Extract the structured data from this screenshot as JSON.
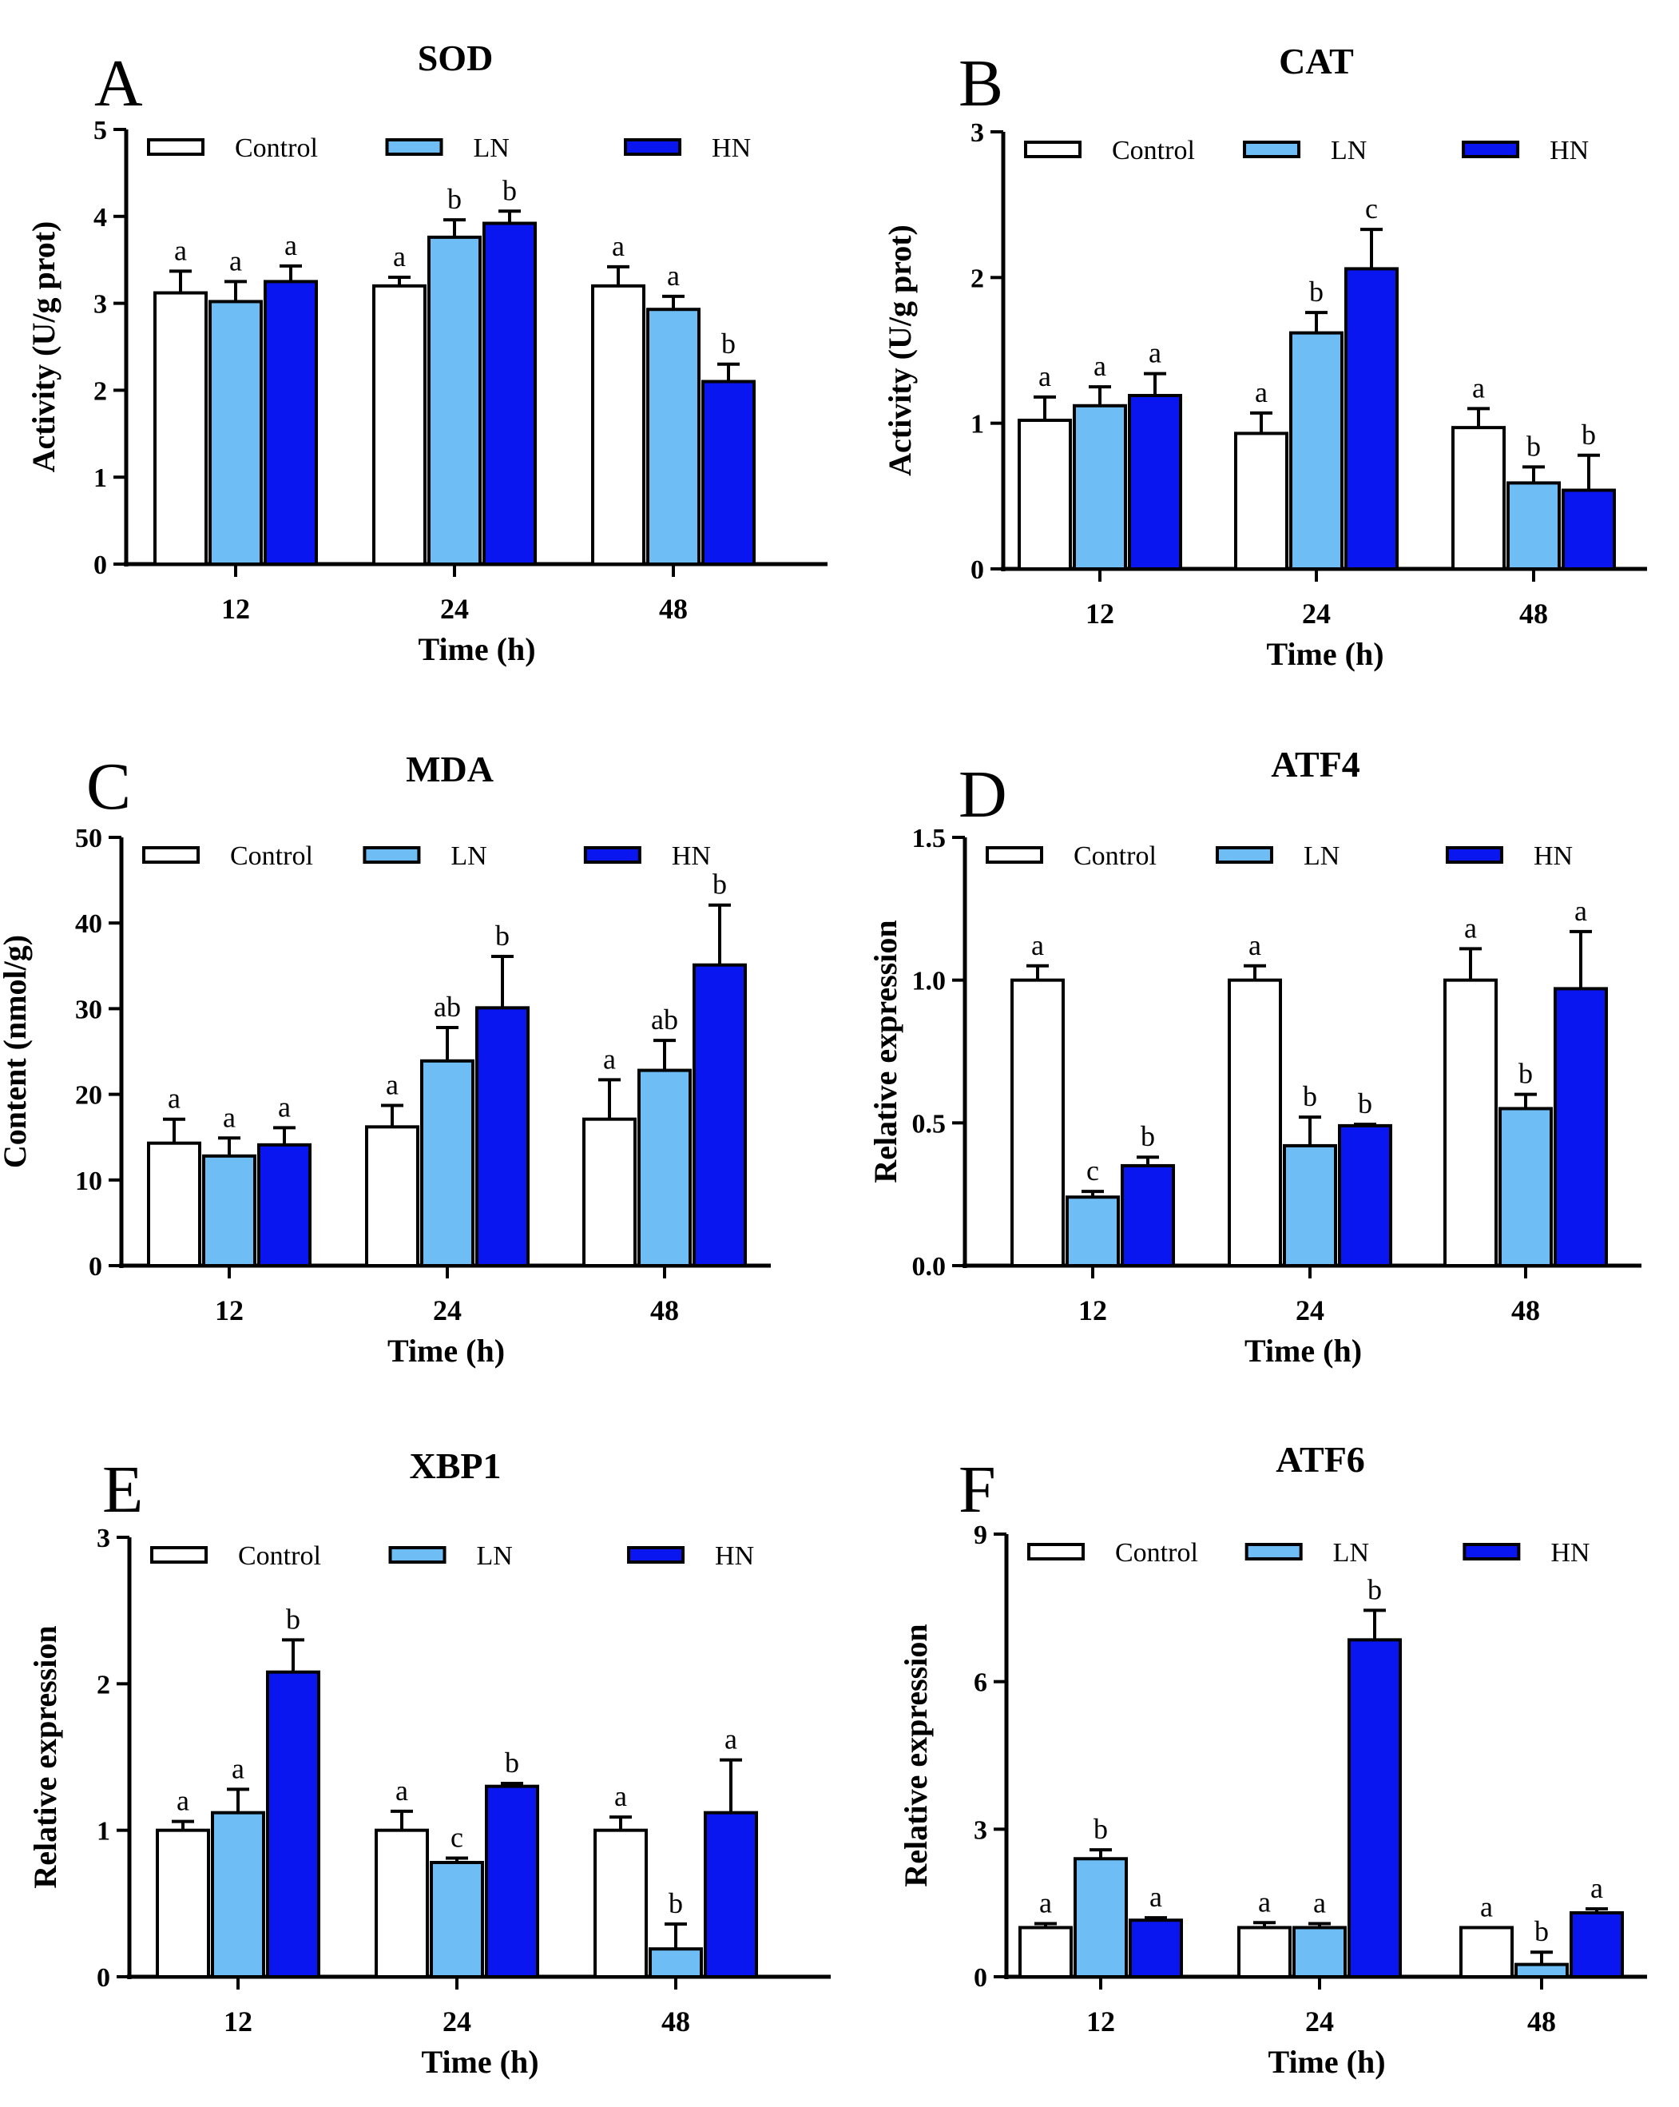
{
  "colors": {
    "Control": "#ffffff",
    "LN": "#6ebdf5",
    "HN": "#0a16f0",
    "stroke": "#000000"
  },
  "chart_data": [
    {
      "panel": "A",
      "type": "bar",
      "title": "SOD",
      "xlabel": "Time (h)",
      "ylabel": "Activity (U/g prot)",
      "ylim": [
        0,
        5
      ],
      "yticks": [
        "0",
        "1",
        "2",
        "3",
        "4",
        "5"
      ],
      "categories": [
        "12",
        "24",
        "48"
      ],
      "legend": [
        "Control",
        "LN",
        "HN"
      ],
      "legend_position": "top",
      "series": [
        {
          "name": "Control",
          "values": [
            3.12,
            3.2,
            3.2
          ],
          "errors": [
            0.25,
            0.1,
            0.22
          ],
          "labels": [
            "a",
            "a",
            "a"
          ]
        },
        {
          "name": "LN",
          "values": [
            3.02,
            3.76,
            2.93
          ],
          "errors": [
            0.23,
            0.2,
            0.15
          ],
          "labels": [
            "a",
            "b",
            "a"
          ]
        },
        {
          "name": "HN",
          "values": [
            3.25,
            3.92,
            2.1
          ],
          "errors": [
            0.18,
            0.14,
            0.2
          ],
          "labels": [
            "a",
            "b",
            "b"
          ]
        }
      ]
    },
    {
      "panel": "B",
      "type": "bar",
      "title": "CAT",
      "xlabel": "Time (h)",
      "ylabel": "Activity (U/g prot)",
      "ylim": [
        0,
        3
      ],
      "yticks": [
        "0",
        "1",
        "2",
        "3"
      ],
      "categories": [
        "12",
        "24",
        "48"
      ],
      "legend": [
        "Control",
        "LN",
        "HN"
      ],
      "legend_position": "top",
      "series": [
        {
          "name": "Control",
          "values": [
            1.02,
            0.93,
            0.97
          ],
          "errors": [
            0.16,
            0.14,
            0.13
          ],
          "labels": [
            "a",
            "a",
            "a"
          ]
        },
        {
          "name": "LN",
          "values": [
            1.12,
            1.62,
            0.59
          ],
          "errors": [
            0.13,
            0.14,
            0.11
          ],
          "labels": [
            "a",
            "b",
            "b"
          ]
        },
        {
          "name": "HN",
          "values": [
            1.19,
            2.06,
            0.54
          ],
          "errors": [
            0.15,
            0.27,
            0.24
          ],
          "labels": [
            "a",
            "c",
            "b"
          ]
        }
      ]
    },
    {
      "panel": "C",
      "type": "bar",
      "title": "MDA",
      "xlabel": "Time (h)",
      "ylabel": "Content (nmol/g)",
      "ylim": [
        0,
        50
      ],
      "yticks": [
        "0",
        "10",
        "20",
        "30",
        "40",
        "50"
      ],
      "categories": [
        "12",
        "24",
        "48"
      ],
      "legend": [
        "Control",
        "LN",
        "HN"
      ],
      "legend_position": "top",
      "series": [
        {
          "name": "Control",
          "values": [
            14.3,
            16.2,
            17.1
          ],
          "errors": [
            2.8,
            2.5,
            4.6
          ],
          "labels": [
            "a",
            "a",
            "a"
          ]
        },
        {
          "name": "LN",
          "values": [
            12.8,
            23.9,
            22.8
          ],
          "errors": [
            2.1,
            3.9,
            3.5
          ],
          "labels": [
            "a",
            "ab",
            "ab"
          ]
        },
        {
          "name": "HN",
          "values": [
            14.1,
            30.1,
            35.1
          ],
          "errors": [
            2.0,
            6.0,
            7.0
          ],
          "labels": [
            "a",
            "b",
            "b"
          ]
        }
      ]
    },
    {
      "panel": "D",
      "type": "bar",
      "title": "ATF4",
      "xlabel": "Time (h)",
      "ylabel": "Relative expression",
      "ylim": [
        0,
        1.5
      ],
      "yticks": [
        "0.0",
        "0.5",
        "1.0",
        "1.5"
      ],
      "categories": [
        "12",
        "24",
        "48"
      ],
      "legend": [
        "Control",
        "LN",
        "HN"
      ],
      "legend_position": "top",
      "series": [
        {
          "name": "Control",
          "values": [
            1.0,
            1.0,
            1.0
          ],
          "errors": [
            0.05,
            0.05,
            0.11
          ],
          "labels": [
            "a",
            "a",
            "a"
          ]
        },
        {
          "name": "LN",
          "values": [
            0.24,
            0.42,
            0.55
          ],
          "errors": [
            0.02,
            0.1,
            0.05
          ],
          "labels": [
            "c",
            "b",
            "b"
          ]
        },
        {
          "name": "HN",
          "values": [
            0.35,
            0.49,
            0.97
          ],
          "errors": [
            0.03,
            0.005,
            0.2
          ],
          "labels": [
            "b",
            "b",
            "a"
          ]
        }
      ]
    },
    {
      "panel": "E",
      "type": "bar",
      "title": "XBP1",
      "xlabel": "Time (h)",
      "ylabel": "Relative expression",
      "ylim": [
        0,
        3
      ],
      "yticks": [
        "0",
        "1",
        "2",
        "3"
      ],
      "categories": [
        "12",
        "24",
        "48"
      ],
      "legend": [
        "Control",
        "LN",
        "HN"
      ],
      "legend_position": "top",
      "series": [
        {
          "name": "Control",
          "values": [
            1.0,
            1.0,
            1.0
          ],
          "errors": [
            0.06,
            0.13,
            0.09
          ],
          "labels": [
            "a",
            "a",
            "a"
          ]
        },
        {
          "name": "LN",
          "values": [
            1.12,
            0.78,
            0.19
          ],
          "errors": [
            0.16,
            0.03,
            0.17
          ],
          "labels": [
            "a",
            "c",
            "b"
          ]
        },
        {
          "name": "HN",
          "values": [
            2.08,
            1.3,
            1.12
          ],
          "errors": [
            0.22,
            0.02,
            0.36
          ],
          "labels": [
            "b",
            "b",
            "a"
          ]
        }
      ]
    },
    {
      "panel": "F",
      "type": "bar",
      "title": "ATF6",
      "xlabel": "Time (h)",
      "ylabel": "Relative expression",
      "ylim": [
        0,
        9
      ],
      "yticks": [
        "0",
        "3",
        "6",
        "9"
      ],
      "categories": [
        "12",
        "24",
        "48"
      ],
      "legend": [
        "Control",
        "LN",
        "HN"
      ],
      "legend_position": "top",
      "series": [
        {
          "name": "Control",
          "values": [
            1.0,
            1.0,
            1.0
          ],
          "errors": [
            0.08,
            0.1,
            0.0
          ],
          "labels": [
            "a",
            "a",
            "a"
          ]
        },
        {
          "name": "LN",
          "values": [
            2.4,
            1.0,
            0.25
          ],
          "errors": [
            0.18,
            0.08,
            0.25
          ],
          "labels": [
            "b",
            "a",
            "b"
          ]
        },
        {
          "name": "HN",
          "values": [
            1.15,
            6.85,
            1.3
          ],
          "errors": [
            0.05,
            0.6,
            0.08
          ],
          "labels": [
            "a",
            "b",
            "a"
          ]
        }
      ]
    }
  ]
}
